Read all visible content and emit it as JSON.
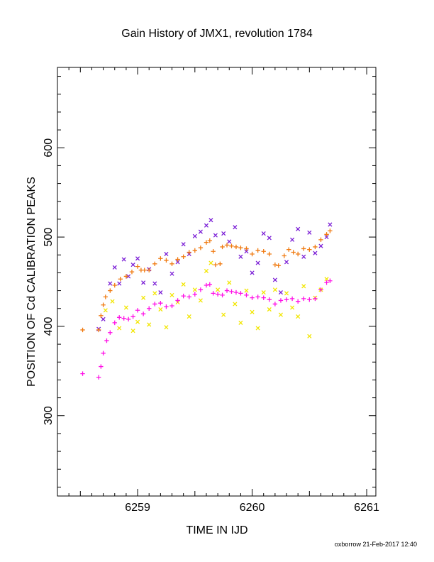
{
  "chart_data": {
    "type": "scatter",
    "title": "Gain History of JMX1, revolution 1784",
    "xlabel": "TIME IN IJD",
    "ylabel": "POSITION OF Cd CALIBRATION PEAKS",
    "xlim": [
      6258.3,
      6261.08
    ],
    "ylim": [
      210,
      690
    ],
    "xticks": [
      6259,
      6260,
      6261
    ],
    "xtick_labels": [
      "6259",
      "6260",
      "6261"
    ],
    "yticks": [
      300,
      400,
      500,
      600
    ],
    "ytick_labels": [
      "300",
      "400",
      "500",
      "600"
    ],
    "xminor_step": 0.1,
    "yminor_step": 20,
    "grid": false,
    "legend": "none",
    "series": [
      {
        "marker": "x",
        "color": "#7b1fd6",
        "points": [
          [
            6258.66,
            397
          ],
          [
            6258.7,
            408
          ],
          [
            6258.76,
            448
          ],
          [
            6258.8,
            466
          ],
          [
            6258.84,
            448
          ],
          [
            6258.88,
            475
          ],
          [
            6258.92,
            456
          ],
          [
            6258.96,
            469
          ],
          [
            6259.0,
            476
          ],
          [
            6259.05,
            449
          ],
          [
            6259.1,
            464
          ],
          [
            6259.15,
            448
          ],
          [
            6259.2,
            438
          ],
          [
            6259.25,
            481
          ],
          [
            6259.3,
            459
          ],
          [
            6259.35,
            472
          ],
          [
            6259.4,
            492
          ],
          [
            6259.45,
            481
          ],
          [
            6259.5,
            501
          ],
          [
            6259.55,
            506
          ],
          [
            6259.6,
            513
          ],
          [
            6259.64,
            519
          ],
          [
            6259.68,
            502
          ],
          [
            6259.75,
            504
          ],
          [
            6259.8,
            495
          ],
          [
            6259.85,
            511
          ],
          [
            6259.9,
            478
          ],
          [
            6259.95,
            484
          ],
          [
            6260.0,
            460
          ],
          [
            6260.05,
            471
          ],
          [
            6260.1,
            504
          ],
          [
            6260.15,
            499
          ],
          [
            6260.2,
            452
          ],
          [
            6260.25,
            438
          ],
          [
            6260.3,
            472
          ],
          [
            6260.35,
            497
          ],
          [
            6260.4,
            509
          ],
          [
            6260.45,
            478
          ],
          [
            6260.5,
            505
          ],
          [
            6260.55,
            482
          ],
          [
            6260.6,
            490
          ],
          [
            6260.65,
            500
          ],
          [
            6260.68,
            514
          ]
        ]
      },
      {
        "marker": "x",
        "color": "#f2e600",
        "points": [
          [
            6258.72,
            418
          ],
          [
            6258.78,
            428
          ],
          [
            6258.84,
            398
          ],
          [
            6258.9,
            421
          ],
          [
            6258.96,
            395
          ],
          [
            6259.0,
            405
          ],
          [
            6259.05,
            432
          ],
          [
            6259.1,
            402
          ],
          [
            6259.15,
            437
          ],
          [
            6259.2,
            419
          ],
          [
            6259.25,
            399
          ],
          [
            6259.3,
            435
          ],
          [
            6259.35,
            427
          ],
          [
            6259.4,
            447
          ],
          [
            6259.45,
            411
          ],
          [
            6259.5,
            441
          ],
          [
            6259.55,
            429
          ],
          [
            6259.6,
            462
          ],
          [
            6259.64,
            471
          ],
          [
            6259.7,
            441
          ],
          [
            6259.75,
            413
          ],
          [
            6259.8,
            449
          ],
          [
            6259.85,
            425
          ],
          [
            6259.9,
            404
          ],
          [
            6259.95,
            440
          ],
          [
            6260.0,
            416
          ],
          [
            6260.05,
            398
          ],
          [
            6260.1,
            438
          ],
          [
            6260.15,
            419
          ],
          [
            6260.2,
            441
          ],
          [
            6260.25,
            413
          ],
          [
            6260.3,
            437
          ],
          [
            6260.35,
            421
          ],
          [
            6260.4,
            411
          ],
          [
            6260.45,
            445
          ],
          [
            6260.5,
            389
          ],
          [
            6260.55,
            432
          ],
          [
            6260.6,
            441
          ],
          [
            6260.65,
            453
          ]
        ]
      },
      {
        "marker": "+",
        "color": "#f07a10",
        "points": [
          [
            6258.52,
            396
          ],
          [
            6258.66,
            396
          ],
          [
            6258.68,
            412
          ],
          [
            6258.7,
            424
          ],
          [
            6258.72,
            433
          ],
          [
            6258.76,
            440
          ],
          [
            6258.8,
            446
          ],
          [
            6258.85,
            453
          ],
          [
            6258.9,
            456
          ],
          [
            6258.95,
            461
          ],
          [
            6259.0,
            467
          ],
          [
            6259.03,
            463
          ],
          [
            6259.06,
            463
          ],
          [
            6259.1,
            463
          ],
          [
            6259.15,
            470
          ],
          [
            6259.2,
            476
          ],
          [
            6259.25,
            474
          ],
          [
            6259.3,
            470
          ],
          [
            6259.35,
            475
          ],
          [
            6259.4,
            478
          ],
          [
            6259.45,
            483
          ],
          [
            6259.5,
            485
          ],
          [
            6259.55,
            488
          ],
          [
            6259.6,
            494
          ],
          [
            6259.63,
            496
          ],
          [
            6259.66,
            484
          ],
          [
            6259.68,
            469
          ],
          [
            6259.72,
            470
          ],
          [
            6259.74,
            489
          ],
          [
            6259.78,
            491
          ],
          [
            6259.82,
            490
          ],
          [
            6259.86,
            489
          ],
          [
            6259.9,
            488
          ],
          [
            6259.95,
            487
          ],
          [
            6260.0,
            481
          ],
          [
            6260.05,
            485
          ],
          [
            6260.1,
            484
          ],
          [
            6260.15,
            481
          ],
          [
            6260.2,
            469
          ],
          [
            6260.23,
            468
          ],
          [
            6260.28,
            479
          ],
          [
            6260.32,
            486
          ],
          [
            6260.36,
            483
          ],
          [
            6260.4,
            481
          ],
          [
            6260.45,
            487
          ],
          [
            6260.5,
            486
          ],
          [
            6260.55,
            489
          ],
          [
            6260.6,
            497
          ],
          [
            6260.65,
            503
          ],
          [
            6260.68,
            507
          ]
        ]
      },
      {
        "marker": "+",
        "color": "#ff10e6",
        "points": [
          [
            6258.52,
            347
          ],
          [
            6258.66,
            343
          ],
          [
            6258.68,
            355
          ],
          [
            6258.7,
            370
          ],
          [
            6258.73,
            384
          ],
          [
            6258.76,
            393
          ],
          [
            6258.8,
            404
          ],
          [
            6258.84,
            410
          ],
          [
            6258.88,
            409
          ],
          [
            6258.92,
            408
          ],
          [
            6258.96,
            411
          ],
          [
            6259.0,
            418
          ],
          [
            6259.05,
            414
          ],
          [
            6259.1,
            420
          ],
          [
            6259.15,
            425
          ],
          [
            6259.2,
            426
          ],
          [
            6259.25,
            422
          ],
          [
            6259.3,
            423
          ],
          [
            6259.35,
            429
          ],
          [
            6259.4,
            434
          ],
          [
            6259.45,
            433
          ],
          [
            6259.5,
            436
          ],
          [
            6259.55,
            441
          ],
          [
            6259.6,
            446
          ],
          [
            6259.63,
            447
          ],
          [
            6259.66,
            437
          ],
          [
            6259.7,
            436
          ],
          [
            6259.74,
            435
          ],
          [
            6259.78,
            440
          ],
          [
            6259.82,
            439
          ],
          [
            6259.86,
            438
          ],
          [
            6259.9,
            437
          ],
          [
            6259.95,
            435
          ],
          [
            6260.0,
            432
          ],
          [
            6260.05,
            433
          ],
          [
            6260.1,
            432
          ],
          [
            6260.15,
            430
          ],
          [
            6260.2,
            425
          ],
          [
            6260.25,
            429
          ],
          [
            6260.3,
            430
          ],
          [
            6260.35,
            431
          ],
          [
            6260.4,
            428
          ],
          [
            6260.45,
            431
          ],
          [
            6260.5,
            430
          ],
          [
            6260.55,
            431
          ],
          [
            6260.6,
            441
          ],
          [
            6260.65,
            449
          ],
          [
            6260.68,
            451
          ]
        ]
      }
    ]
  },
  "footer": {
    "credit": "oxborrow 21-Feb-2017 12:40"
  }
}
